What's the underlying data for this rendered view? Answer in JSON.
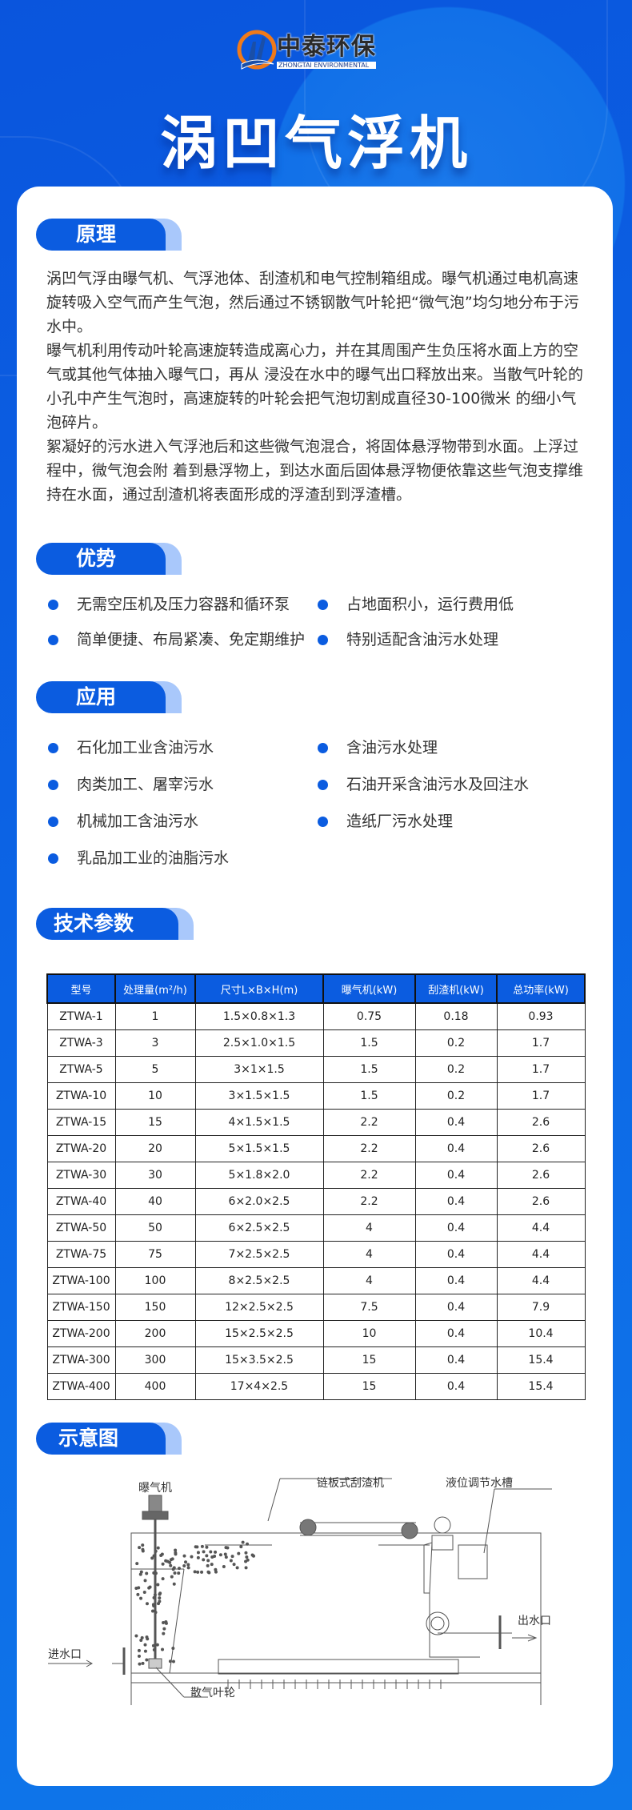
{
  "brand": {
    "name_cn": "中泰环保",
    "name_en": "ZHONGTAI ENVIRONMENTAL"
  },
  "title": "涡凹气浮机",
  "sections": {
    "principle": {
      "label": "原理",
      "paragraphs": [
        "涡凹气浮由曝气机、气浮池体、刮渣机和电气控制箱组成。曝气机通过电机高速旋转吸入空气而产生气泡，然后通过不锈钢散气叶轮把“微气泡”均匀地分布于污水中。",
        "曝气机利用传动叶轮高速旋转造成离心力，并在其周围产生负压将水面上方的空气或其他气体抽入曝气口，再从 浸没在水中的曝气出口释放出来。当散气叶轮的小孔中产生气泡时，高速旋转的叶轮会把气泡切割成直径30-100微米 的细小气泡碎片。",
        "絮凝好的污水进入气浮池后和这些微气泡混合，将固体悬浮物带到水面。上浮过程中，微气泡会附 着到悬浮物上，到达水面后固体悬浮物便依靠这些气泡支撑维持在水面，通过刮渣机将表面形成的浮渣刮到浮渣槽。"
      ]
    },
    "advantages": {
      "label": "优势",
      "items": [
        "无需空压机及压力容器和循环泵",
        "占地面积小，运行费用低",
        "简单便捷、布局紧凑、免定期维护",
        "特别适配含油污水处理"
      ]
    },
    "applications": {
      "label": "应用",
      "items": [
        "石化加工业含油污水",
        "含油污水处理",
        "肉类加工、屠宰污水",
        "石油开采含油污水及回注水",
        "机械加工含油污水",
        "造纸厂污水处理",
        "乳品加工业的油脂污水"
      ]
    },
    "specs": {
      "label": "技术参数",
      "headers": [
        "型号",
        "处理量(m²/h)",
        "尺寸L×B×H(m)",
        "曝气机(kW)",
        "刮渣机(kW)",
        "总功率(kW)"
      ],
      "rows": [
        [
          "ZTWA-1",
          "1",
          "1.5×0.8×1.3",
          "0.75",
          "0.18",
          "0.93"
        ],
        [
          "ZTWA-3",
          "3",
          "2.5×1.0×1.5",
          "1.5",
          "0.2",
          "1.7"
        ],
        [
          "ZTWA-5",
          "5",
          "3×1×1.5",
          "1.5",
          "0.2",
          "1.7"
        ],
        [
          "ZTWA-10",
          "10",
          "3×1.5×1.5",
          "1.5",
          "0.2",
          "1.7"
        ],
        [
          "ZTWA-15",
          "15",
          "4×1.5×1.5",
          "2.2",
          "0.4",
          "2.6"
        ],
        [
          "ZTWA-20",
          "20",
          "5×1.5×1.5",
          "2.2",
          "0.4",
          "2.6"
        ],
        [
          "ZTWA-30",
          "30",
          "5×1.8×2.0",
          "2.2",
          "0.4",
          "2.6"
        ],
        [
          "ZTWA-40",
          "40",
          "6×2.0×2.5",
          "2.2",
          "0.4",
          "2.6"
        ],
        [
          "ZTWA-50",
          "50",
          "6×2.5×2.5",
          "4",
          "0.4",
          "4.4"
        ],
        [
          "ZTWA-75",
          "75",
          "7×2.5×2.5",
          "4",
          "0.4",
          "4.4"
        ],
        [
          "ZTWA-100",
          "100",
          "8×2.5×2.5",
          "4",
          "0.4",
          "4.4"
        ],
        [
          "ZTWA-150",
          "150",
          "12×2.5×2.5",
          "7.5",
          "0.4",
          "7.9"
        ],
        [
          "ZTWA-200",
          "200",
          "15×2.5×2.5",
          "10",
          "0.4",
          "10.4"
        ],
        [
          "ZTWA-300",
          "300",
          "15×3.5×2.5",
          "15",
          "0.4",
          "15.4"
        ],
        [
          "ZTWA-400",
          "400",
          "17×4×2.5",
          "15",
          "0.4",
          "15.4"
        ]
      ]
    },
    "diagram": {
      "label": "示意图",
      "labels": {
        "aerator": "曝气机",
        "scraper": "链板式刮渣机",
        "level_tank": "液位调节水槽",
        "outlet": "出水口",
        "inlet": "进水口",
        "impeller": "散气叶轮"
      }
    }
  },
  "colors": {
    "primary": "#0b5ce0",
    "tag_shadow": "#a9c8fb",
    "card": "#ffffff"
  }
}
